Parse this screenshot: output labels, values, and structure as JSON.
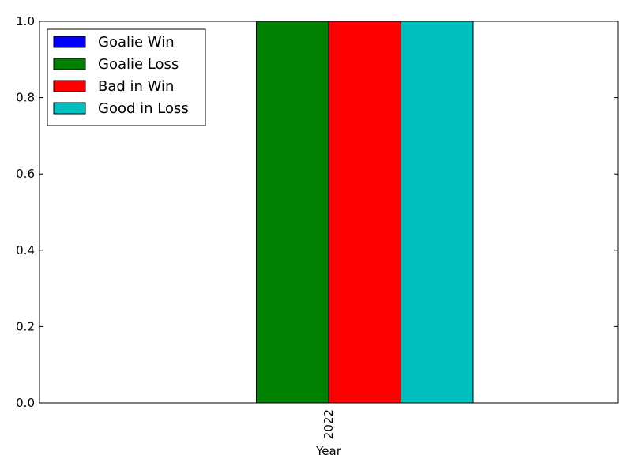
{
  "chart_data": {
    "type": "bar",
    "categories": [
      "2022"
    ],
    "series": [
      {
        "name": "Goalie Win",
        "values": [
          0.0
        ],
        "color": "#0000ff"
      },
      {
        "name": "Goalie Loss",
        "values": [
          1.0
        ],
        "color": "#008000"
      },
      {
        "name": "Bad in Win",
        "values": [
          1.0
        ],
        "color": "#ff0000"
      },
      {
        "name": "Good in Loss",
        "values": [
          1.0
        ],
        "color": "#00bfbf"
      }
    ],
    "xlabel": "Year",
    "ylabel": "",
    "ylim": [
      0.0,
      1.0
    ],
    "yticks": [
      "0.0",
      "0.2",
      "0.4",
      "0.6",
      "0.8",
      "1.0"
    ],
    "grid": false,
    "legend_position": "top-left"
  }
}
